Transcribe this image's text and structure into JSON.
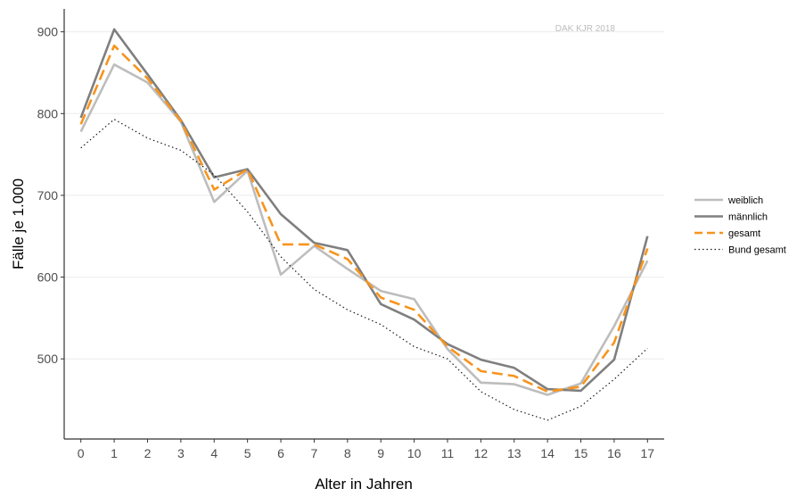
{
  "chart_data": {
    "type": "line",
    "source_note": "DAK KJR 2018",
    "xlabel": "Alter in Jahren",
    "ylabel": "Fälle je 1.000",
    "x": [
      0,
      1,
      2,
      3,
      4,
      5,
      6,
      7,
      8,
      9,
      10,
      11,
      12,
      13,
      14,
      15,
      16,
      17
    ],
    "xlim": [
      -0.5,
      17.5
    ],
    "ylim": [
      402,
      928
    ],
    "yticks": [
      500,
      600,
      700,
      800,
      900
    ],
    "grid": "horizontal",
    "legend_position": "right",
    "series": [
      {
        "name": "weiblich",
        "color": "#bdbdbd",
        "style": "solid",
        "values": [
          778,
          860,
          838,
          790,
          692,
          730,
          603,
          638,
          610,
          583,
          573,
          512,
          471,
          469,
          456,
          470,
          540,
          620
        ]
      },
      {
        "name": "männlich",
        "color": "#7f7f7f",
        "style": "solid",
        "values": [
          795,
          903,
          848,
          792,
          722,
          732,
          677,
          642,
          633,
          567,
          548,
          518,
          499,
          489,
          463,
          461,
          499,
          650
        ]
      },
      {
        "name": "gesamt",
        "color": "#f7941d",
        "style": "dashed",
        "values": [
          787,
          883,
          843,
          791,
          707,
          732,
          640,
          640,
          622,
          575,
          560,
          515,
          485,
          479,
          460,
          466,
          520,
          635
        ]
      },
      {
        "name": "Bund gesamt",
        "color": "#1a1a1a",
        "style": "dotted",
        "values": [
          758,
          793,
          770,
          755,
          725,
          680,
          625,
          585,
          560,
          542,
          515,
          500,
          460,
          438,
          425,
          442,
          475,
          513
        ]
      }
    ]
  }
}
